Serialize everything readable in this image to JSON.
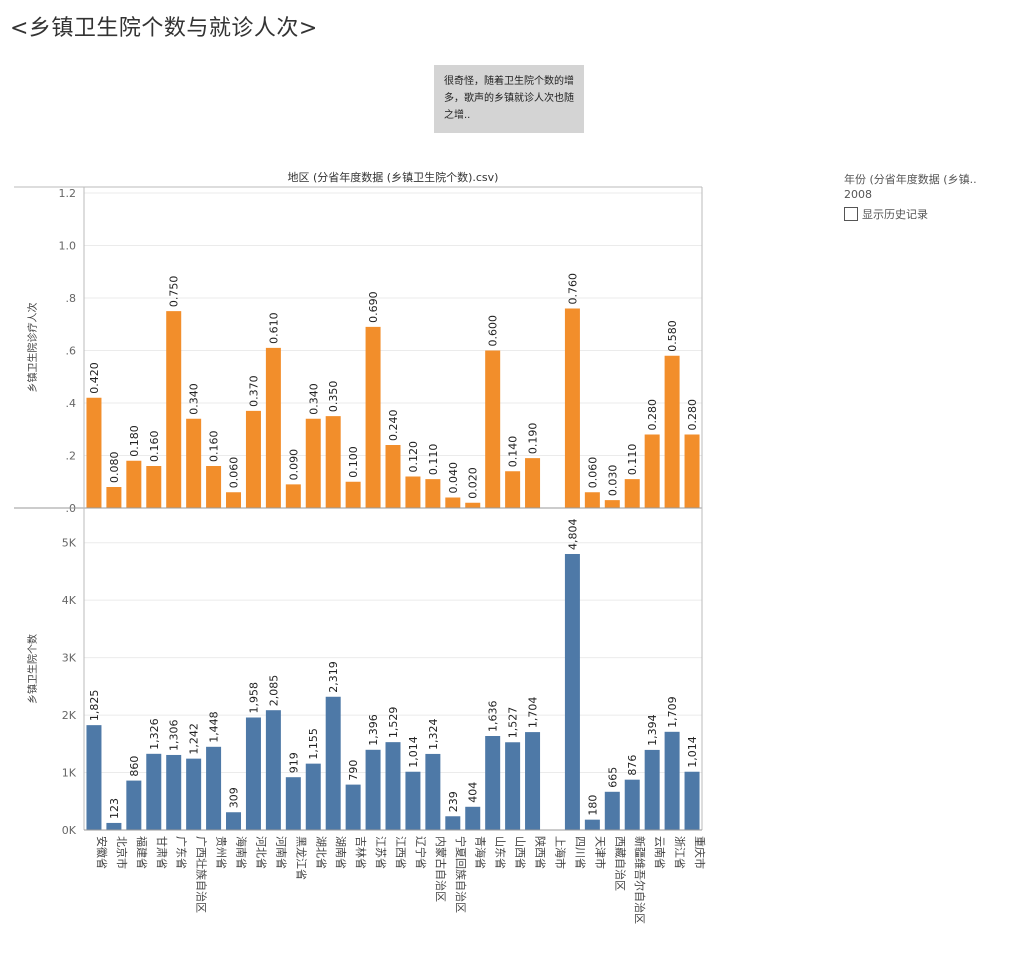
{
  "title": "<乡镇卫生院个数与就诊人次>",
  "annotation": "很奇怪，随着卫生院个数的增多，歌声的乡镇就诊人次也随之增..",
  "legend": {
    "title": "年份 (分省年度数据 (乡镇..",
    "value": "2008",
    "checkbox_label": "显示历史记录"
  },
  "colors": {
    "top_bar": "#f28e2b",
    "bottom_bar": "#4e79a7",
    "grid": "#ebebeb",
    "axis": "#bbbbbb"
  },
  "chart_data": {
    "type": "bar",
    "column_header": "地区 (分省年度数据 (乡镇卫生院个数).csv)",
    "categories": [
      "安徽省",
      "北京市",
      "福建省",
      "甘肃省",
      "广东省",
      "广西壮族自治区",
      "贵州省",
      "海南省",
      "河北省",
      "河南省",
      "黑龙江省",
      "湖北省",
      "湖南省",
      "吉林省",
      "江苏省",
      "江西省",
      "辽宁省",
      "内蒙古自治区",
      "宁夏回族自治区",
      "青海省",
      "山东省",
      "山西省",
      "陕西省",
      "上海市",
      "四川省",
      "天津市",
      "西藏自治区",
      "新疆维吾尔自治区",
      "云南省",
      "浙江省",
      "重庆市"
    ],
    "panels": [
      {
        "name": "乡镇卫生院诊疗人次",
        "ylabel": "乡镇卫生院诊疗人次",
        "ylim": [
          0,
          1.2
        ],
        "ticks": [
          0,
          0.2,
          0.4,
          0.6,
          0.8,
          1.0,
          1.2
        ],
        "tick_labels": [
          ".0",
          ".2",
          ".4",
          ".6",
          ".8",
          "1.0",
          "1.2"
        ],
        "values": [
          0.42,
          0.08,
          0.18,
          0.16,
          0.75,
          0.34,
          0.16,
          0.06,
          0.37,
          0.61,
          0.09,
          0.34,
          0.35,
          0.1,
          0.69,
          0.24,
          0.12,
          0.11,
          0.04,
          0.02,
          0.6,
          0.14,
          0.19,
          null,
          0.76,
          0.06,
          0.03,
          0.11,
          0.28,
          0.58,
          0.28
        ],
        "labels": [
          "0.420",
          "0.080",
          "0.180",
          "0.160",
          "0.750",
          "0.340",
          "0.160",
          "0.060",
          "0.370",
          "0.610",
          "0.090",
          "0.340",
          "0.350",
          "0.100",
          "0.690",
          "0.240",
          "0.120",
          "0.110",
          "0.040",
          "0.020",
          "0.600",
          "0.140",
          "0.190",
          "",
          "0.760",
          "0.060",
          "0.030",
          "0.110",
          "0.280",
          "0.580",
          "0.280"
        ]
      },
      {
        "name": "乡镇卫生院个数",
        "ylabel": "乡镇卫生院个数",
        "ylim": [
          0,
          5500
        ],
        "ticks": [
          0,
          1000,
          2000,
          3000,
          4000,
          5000
        ],
        "tick_labels": [
          "0K",
          "1K",
          "2K",
          "3K",
          "4K",
          "5K"
        ],
        "values": [
          1825,
          123,
          860,
          1326,
          1306,
          1242,
          1448,
          309,
          1958,
          2085,
          919,
          1155,
          2319,
          790,
          1396,
          1529,
          1014,
          1324,
          239,
          404,
          1636,
          1527,
          1704,
          null,
          4804,
          180,
          665,
          876,
          1394,
          1709,
          1014
        ],
        "labels": [
          "1,825",
          "123",
          "860",
          "1,326",
          "1,306",
          "1,242",
          "1,448",
          "309",
          "1,958",
          "2,085",
          "919",
          "1,155",
          "2,319",
          "790",
          "1,396",
          "1,529",
          "1,014",
          "1,324",
          "239",
          "404",
          "1,636",
          "1,527",
          "1,704",
          "",
          "4,804",
          "180",
          "665",
          "876",
          "1,394",
          "1,709",
          "1,014"
        ]
      }
    ]
  }
}
